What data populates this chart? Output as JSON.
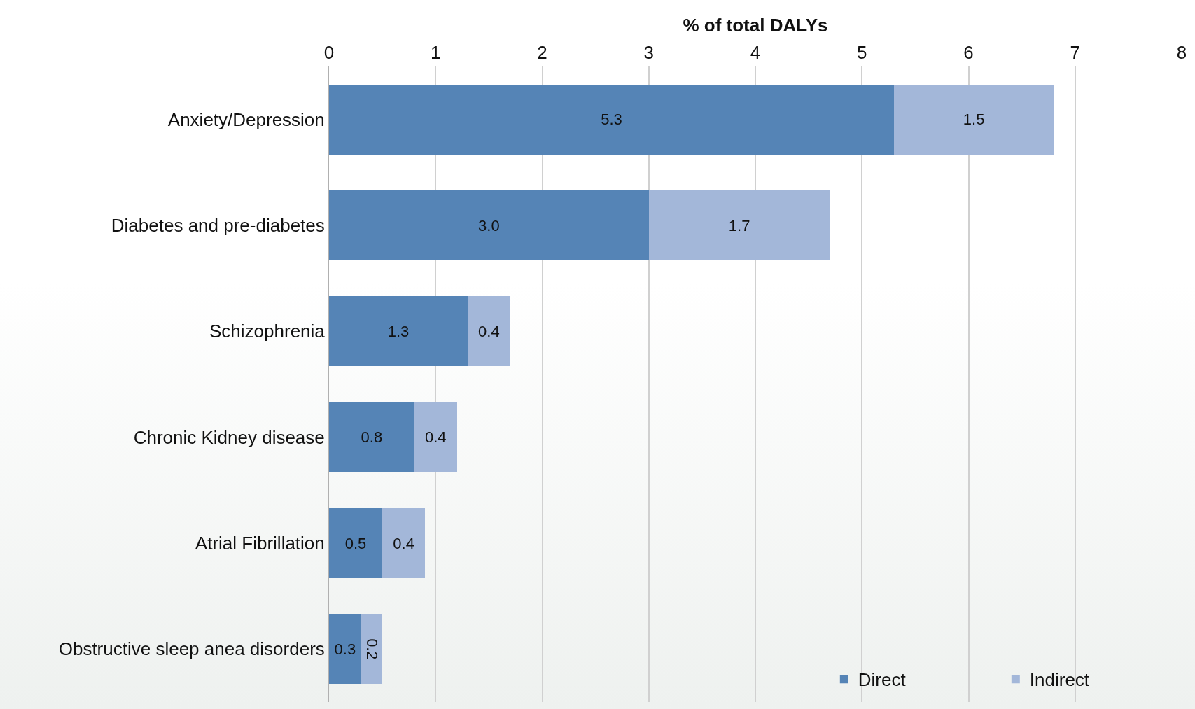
{
  "chart_data": {
    "type": "bar",
    "orientation": "horizontal",
    "stacked": true,
    "xlabel": "% of total DALYs",
    "categories": [
      "Anxiety/Depression",
      "Diabetes and pre-diabetes",
      "Schizophrenia",
      "Chronic Kidney disease",
      "Atrial Fibrillation",
      "Obstructive sleep anea disorders"
    ],
    "series": [
      {
        "name": "Direct",
        "color": "#5584b6",
        "values": [
          5.3,
          3.0,
          1.3,
          0.8,
          0.5,
          0.3
        ],
        "value_labels": [
          "5.3",
          "3.0",
          "1.3",
          "0.8",
          "0.5",
          "0.3"
        ]
      },
      {
        "name": "Indirect",
        "color": "#a3b7d9",
        "values": [
          1.5,
          1.7,
          0.4,
          0.4,
          0.4,
          0.2
        ],
        "value_labels": [
          "1.5",
          "1.7",
          "0.4",
          "0.4",
          "0.4",
          "0.2"
        ]
      }
    ],
    "xlim": [
      0,
      8
    ],
    "xticks": [
      0,
      1,
      2,
      3,
      4,
      5,
      6,
      7,
      8
    ],
    "grid": "x",
    "legend": "bottom right"
  }
}
